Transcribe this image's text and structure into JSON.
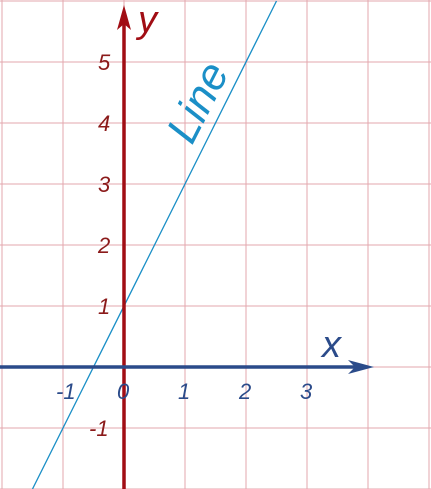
{
  "chart_data": {
    "type": "line",
    "xlabel": "x",
    "ylabel": "y",
    "xlim": [
      -2,
      4
    ],
    "ylim": [
      -2,
      6
    ],
    "grid": true,
    "x_ticks": [
      -1,
      0,
      1,
      2,
      3
    ],
    "y_ticks": [
      -1,
      0,
      1,
      2,
      3,
      4,
      5
    ],
    "x_tick_labels": [
      "-1",
      "0",
      "1",
      "2",
      "3"
    ],
    "y_tick_labels": [
      "-1",
      "0",
      "1",
      "2",
      "3",
      "4",
      "5"
    ],
    "series": [
      {
        "name": "Line",
        "x": [
          -1.5,
          2.5
        ],
        "y": [
          -2,
          6
        ],
        "slope": 2,
        "intercept": 1
      }
    ]
  },
  "colors": {
    "grid": "#e3a7ad",
    "y_axis": "#a10d14",
    "x_axis": "#2b4b8a",
    "line": "#1b8fc7",
    "y_tick_labels": "#8b1a1a",
    "x_tick_labels": "#2b4b8a",
    "y_axis_label": "#a10d14",
    "x_axis_label": "#2b4b8a",
    "line_label": "#1b8fc7"
  }
}
